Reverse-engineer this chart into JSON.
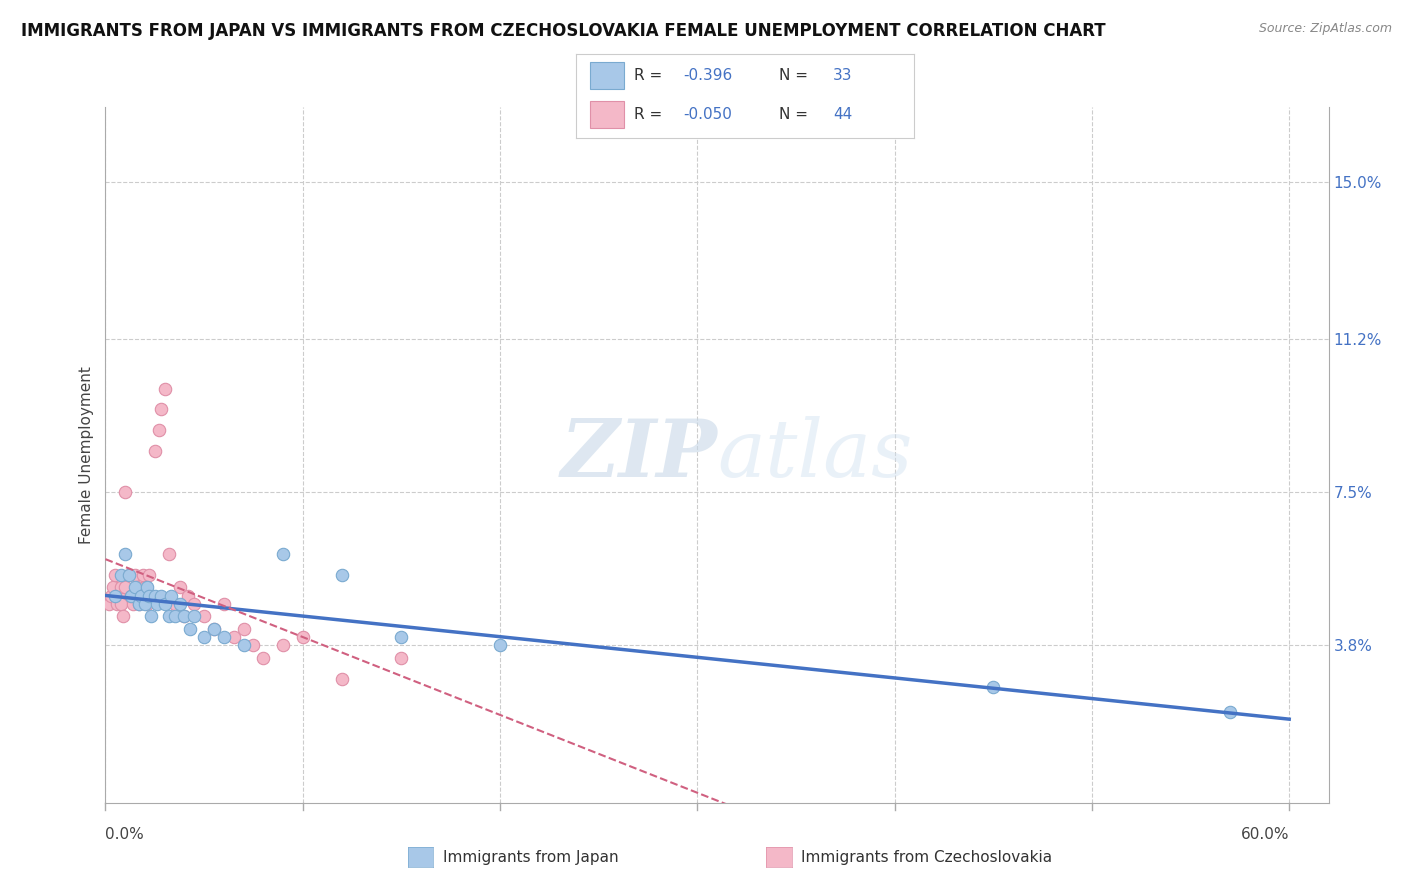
{
  "title": "IMMIGRANTS FROM JAPAN VS IMMIGRANTS FROM CZECHOSLOVAKIA FEMALE UNEMPLOYMENT CORRELATION CHART",
  "source_text": "Source: ZipAtlas.com",
  "ylabel": "Female Unemployment",
  "legend_label_japan": "Immigrants from Japan",
  "legend_label_czech": "Immigrants from Czechoslovakia",
  "r_japan": -0.396,
  "n_japan": 33,
  "r_czech": -0.05,
  "n_czech": 44,
  "color_japan": "#a8c8e8",
  "color_japan_edge": "#7aaad0",
  "color_japan_line": "#4472c4",
  "color_czech": "#f4b8c8",
  "color_czech_edge": "#e090a8",
  "color_czech_line": "#d06080",
  "xlim": [
    0.0,
    0.62
  ],
  "ylim": [
    0.0,
    0.168
  ],
  "right_yticks": [
    0.038,
    0.075,
    0.112,
    0.15
  ],
  "right_yticklabels": [
    "3.8%",
    "7.5%",
    "11.2%",
    "15.0%"
  ],
  "background_color": "#ffffff",
  "grid_color": "#cccccc",
  "watermark_zip": "ZIP",
  "watermark_atlas": "atlas",
  "japan_x": [
    0.005,
    0.008,
    0.01,
    0.012,
    0.013,
    0.015,
    0.017,
    0.018,
    0.02,
    0.021,
    0.022,
    0.023,
    0.025,
    0.026,
    0.028,
    0.03,
    0.032,
    0.033,
    0.035,
    0.038,
    0.04,
    0.043,
    0.045,
    0.05,
    0.055,
    0.06,
    0.07,
    0.09,
    0.12,
    0.15,
    0.2,
    0.45,
    0.57
  ],
  "japan_y": [
    0.05,
    0.055,
    0.06,
    0.055,
    0.05,
    0.052,
    0.048,
    0.05,
    0.048,
    0.052,
    0.05,
    0.045,
    0.05,
    0.048,
    0.05,
    0.048,
    0.045,
    0.05,
    0.045,
    0.048,
    0.045,
    0.042,
    0.045,
    0.04,
    0.042,
    0.04,
    0.038,
    0.06,
    0.055,
    0.04,
    0.038,
    0.028,
    0.022
  ],
  "czech_x": [
    0.002,
    0.003,
    0.004,
    0.005,
    0.006,
    0.007,
    0.008,
    0.008,
    0.009,
    0.01,
    0.01,
    0.012,
    0.013,
    0.014,
    0.015,
    0.016,
    0.017,
    0.018,
    0.019,
    0.02,
    0.021,
    0.022,
    0.023,
    0.025,
    0.027,
    0.028,
    0.03,
    0.032,
    0.035,
    0.038,
    0.04,
    0.042,
    0.045,
    0.05,
    0.055,
    0.06,
    0.065,
    0.07,
    0.075,
    0.08,
    0.09,
    0.1,
    0.12,
    0.15
  ],
  "czech_y": [
    0.048,
    0.05,
    0.052,
    0.055,
    0.048,
    0.05,
    0.052,
    0.048,
    0.045,
    0.052,
    0.075,
    0.055,
    0.05,
    0.048,
    0.055,
    0.052,
    0.048,
    0.05,
    0.055,
    0.052,
    0.048,
    0.055,
    0.05,
    0.085,
    0.09,
    0.095,
    0.1,
    0.06,
    0.048,
    0.052,
    0.045,
    0.05,
    0.048,
    0.045,
    0.042,
    0.048,
    0.04,
    0.042,
    0.038,
    0.035,
    0.038,
    0.04,
    0.03,
    0.035
  ]
}
